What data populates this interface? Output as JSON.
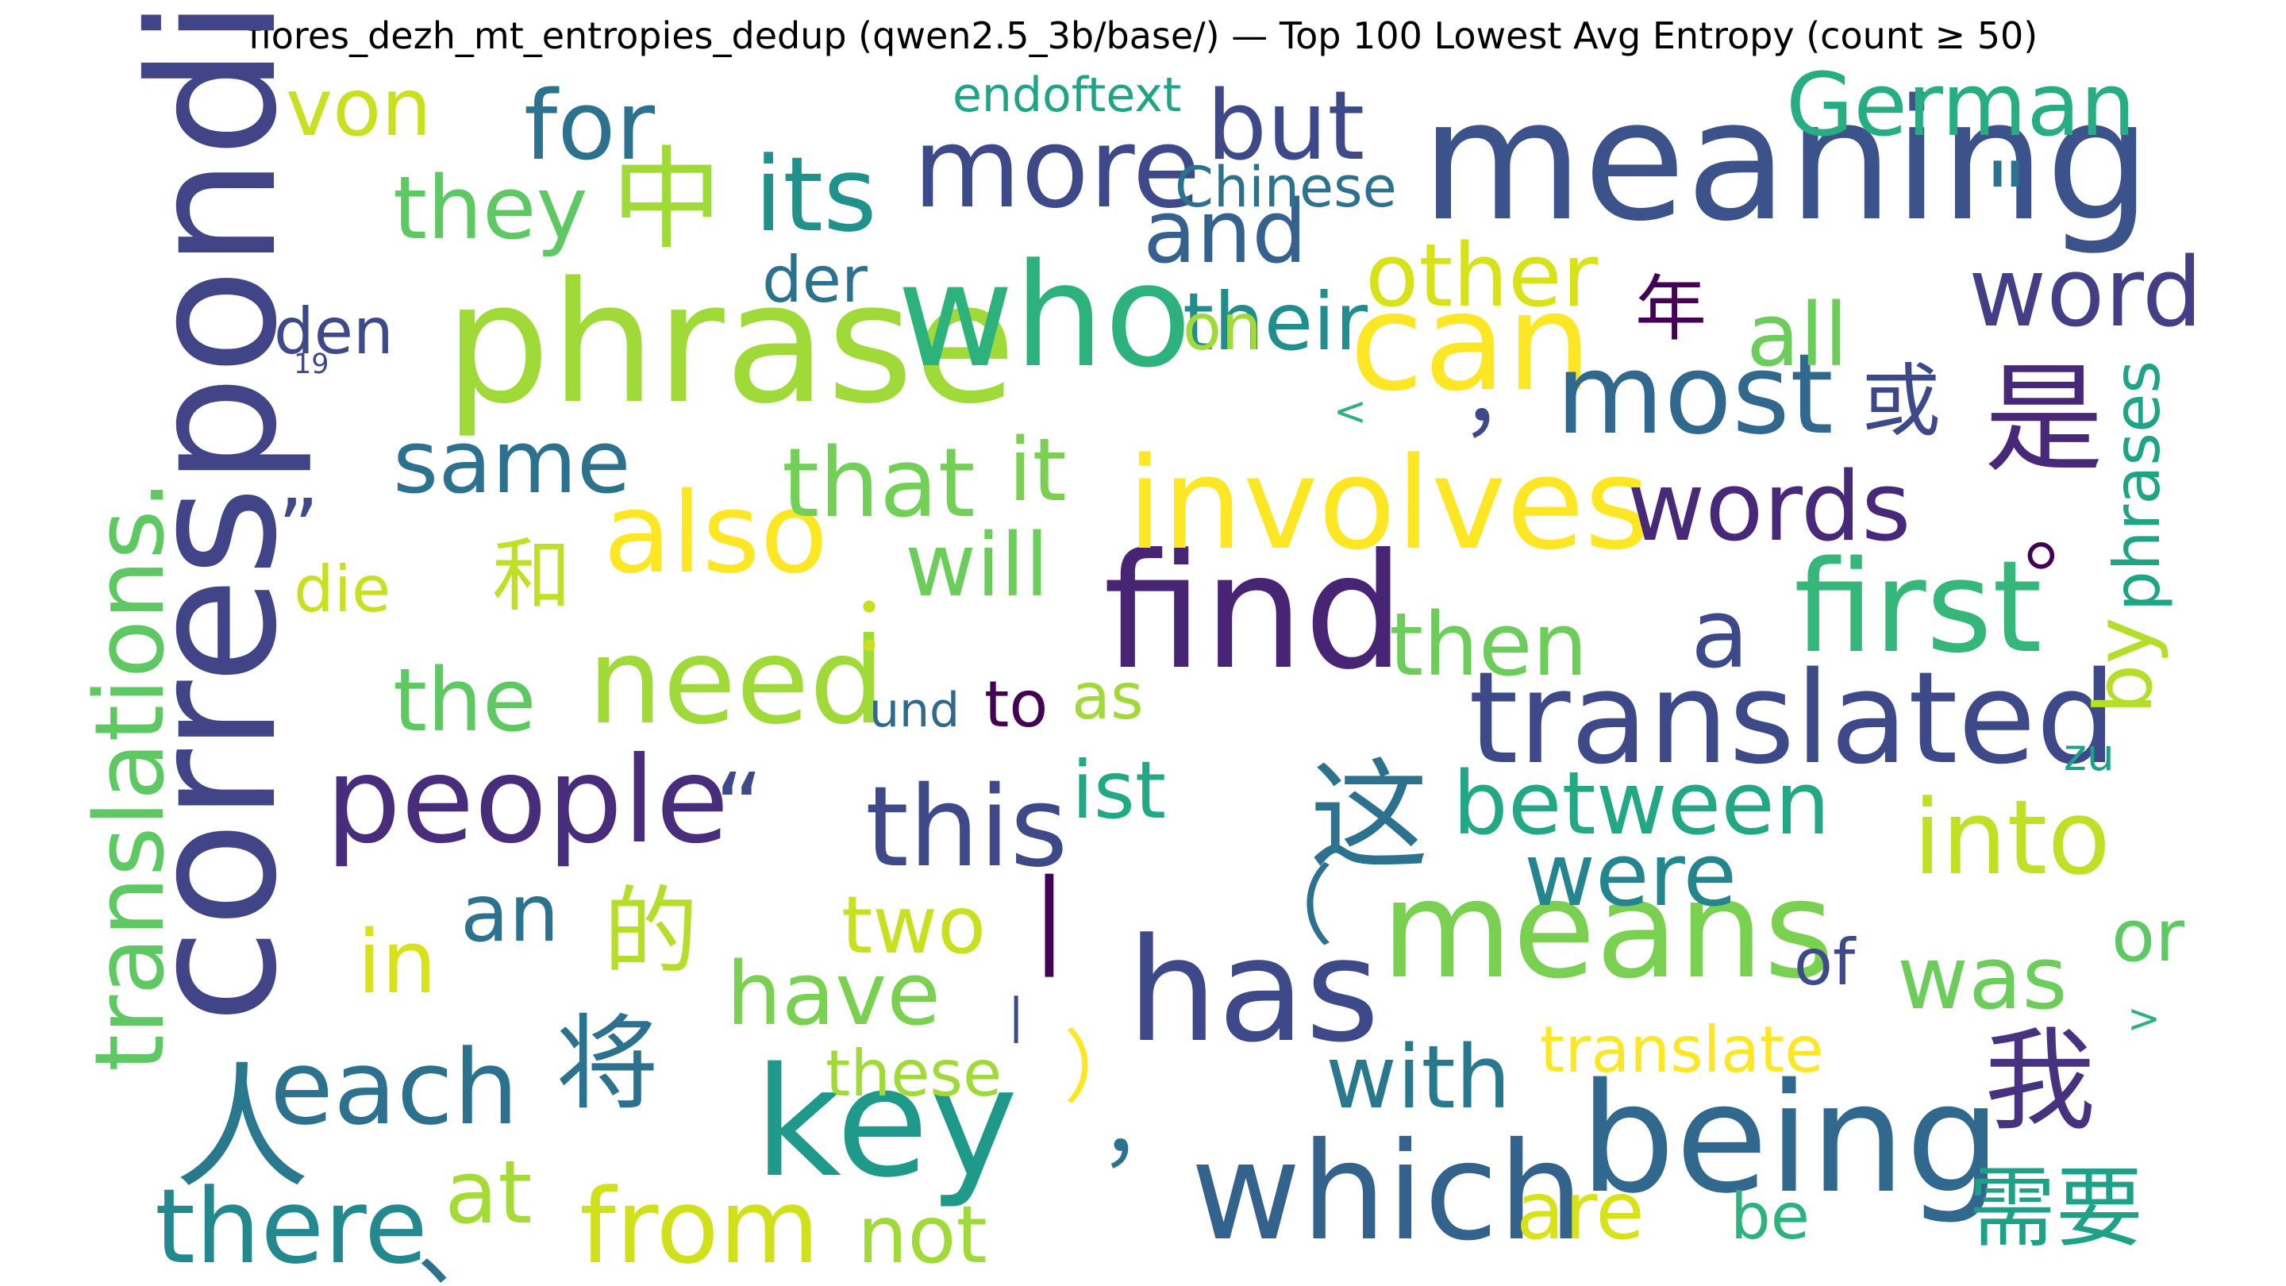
{
  "title": "flores_dezh_mt_entropies_dedup (qwen2.5_3b/base/) — Top 100 Lowest Avg Entropy (count ≥ 50)",
  "chart_data": {
    "type": "wordcloud",
    "title": "flores_dezh_mt_entropies_dedup (qwen2.5_3b/base/) — Top 100 Lowest Avg Entropy (count ≥ 50)",
    "colormap": "viridis",
    "words": [
      {
        "text": "corresponding",
        "weight": 1.0,
        "color": "#414487",
        "rotate": true
      },
      {
        "text": "meaning",
        "weight": 0.95,
        "color": "#3b528b"
      },
      {
        "text": "phrase",
        "weight": 0.95,
        "color": "#a0da39"
      },
      {
        "text": "find",
        "weight": 0.92,
        "color": "#482475"
      },
      {
        "text": "key",
        "weight": 0.9,
        "color": "#1f9a8a"
      },
      {
        "text": "being",
        "weight": 0.9,
        "color": "#31688e"
      },
      {
        "text": "has",
        "weight": 0.88,
        "color": "#3e4989"
      },
      {
        "text": "who",
        "weight": 0.88,
        "color": "#2db27d"
      },
      {
        "text": "which",
        "weight": 0.86,
        "color": "#33638d"
      },
      {
        "text": "means",
        "weight": 0.84,
        "color": "#7ad151"
      },
      {
        "text": "can",
        "weight": 0.84,
        "color": "#fde725"
      },
      {
        "text": "translated",
        "weight": 0.8,
        "color": "#3e4989"
      },
      {
        "text": "first",
        "weight": 0.8,
        "color": "#35b779"
      },
      {
        "text": "involves",
        "weight": 0.8,
        "color": "#fde725"
      },
      {
        "text": "need",
        "weight": 0.78,
        "color": "#a0da39"
      },
      {
        "text": "people",
        "weight": 0.78,
        "color": "#472d7b"
      },
      {
        "text": "translations.",
        "weight": 0.76,
        "color": "#5ec962",
        "rotate": true
      },
      {
        "text": "这",
        "weight": 0.76,
        "color": "#2c728e"
      },
      {
        "text": "人",
        "weight": 0.74,
        "color": "#2a788e"
      },
      {
        "text": "是",
        "weight": 0.74,
        "color": "#482878"
      },
      {
        "text": "我",
        "weight": 0.72,
        "color": "#46327e"
      },
      {
        "text": "most",
        "weight": 0.72,
        "color": "#31688e"
      },
      {
        "text": "more",
        "weight": 0.72,
        "color": "#3e4989"
      },
      {
        "text": "also",
        "weight": 0.72,
        "color": "#fde725"
      },
      {
        "text": "this",
        "weight": 0.7,
        "color": "#3e4989"
      },
      {
        "text": "中",
        "weight": 0.7,
        "color": "#a0da39"
      },
      {
        "text": "its",
        "weight": 0.68,
        "color": "#21918c"
      },
      {
        "text": "into",
        "weight": 0.68,
        "color": "#c0df25"
      },
      {
        "text": "from",
        "weight": 0.68,
        "color": "#d0e11c"
      },
      {
        "text": "there",
        "weight": 0.68,
        "color": "#23898e"
      },
      {
        "text": "each",
        "weight": 0.68,
        "color": "#2c728e"
      },
      {
        "text": "将",
        "weight": 0.66,
        "color": "#2c728e"
      },
      {
        "text": "的",
        "weight": 0.66,
        "color": "#b5de2b"
      },
      {
        "text": "word",
        "weight": 0.66,
        "color": "#433e85"
      },
      {
        "text": "words",
        "weight": 0.66,
        "color": "#482878"
      },
      {
        "text": "German",
        "weight": 0.64,
        "color": "#26ad81"
      },
      {
        "text": "they",
        "weight": 0.64,
        "color": "#5ec962"
      },
      {
        "text": "same",
        "weight": 0.64,
        "color": "#2c728e"
      },
      {
        "text": "that",
        "weight": 0.64,
        "color": "#73d056"
      },
      {
        "text": "the",
        "weight": 0.62,
        "color": "#5ec962"
      },
      {
        "text": "have",
        "weight": 0.62,
        "color": "#7ad151"
      },
      {
        "text": "were",
        "weight": 0.62,
        "color": "#25858e"
      },
      {
        "text": "between",
        "weight": 0.62,
        "color": "#22a884"
      },
      {
        "text": "需要",
        "weight": 0.62,
        "color": "#1fa187"
      },
      {
        "text": "but",
        "weight": 0.6,
        "color": "#3e4989"
      },
      {
        "text": "for",
        "weight": 0.6,
        "color": "#2c728e"
      },
      {
        "text": "other",
        "weight": 0.6,
        "color": "#d8e219"
      },
      {
        "text": "then",
        "weight": 0.6,
        "color": "#6ccd5a"
      },
      {
        "text": "will",
        "weight": 0.6,
        "color": "#6ccd5a"
      },
      {
        "text": "was",
        "weight": 0.6,
        "color": "#6ccd5a"
      },
      {
        "text": "with",
        "weight": 0.6,
        "color": "#29798e"
      },
      {
        "text": "and",
        "weight": 0.58,
        "color": "#34618d"
      },
      {
        "text": "all",
        "weight": 0.58,
        "color": "#6ccd5a"
      },
      {
        "text": "their",
        "weight": 0.58,
        "color": "#228d8d"
      },
      {
        "text": "in",
        "weight": 0.58,
        "color": "#d8e219"
      },
      {
        "text": "it",
        "weight": 0.58,
        "color": "#7ad151"
      },
      {
        "text": "a",
        "weight": 0.58,
        "color": "#3e4989"
      },
      {
        "text": "和",
        "weight": 0.56,
        "color": "#c2df23"
      },
      {
        "text": "或",
        "weight": 0.56,
        "color": "#3e4989"
      },
      {
        "text": "by",
        "weight": 0.56,
        "color": "#b5de2b",
        "rotate": true
      },
      {
        "text": "phrases",
        "weight": 0.5,
        "color": "#20a486",
        "rotate": true
      },
      {
        "text": "von",
        "weight": 0.54,
        "color": "#c8e020"
      },
      {
        "text": "an",
        "weight": 0.54,
        "color": "#2c728e"
      },
      {
        "text": "two",
        "weight": 0.54,
        "color": "#c8e020"
      },
      {
        "text": "ist",
        "weight": 0.54,
        "color": "#22a884"
      },
      {
        "text": "at",
        "weight": 0.54,
        "color": "#a5db36"
      },
      {
        "text": "are",
        "weight": 0.54,
        "color": "#d8e219"
      },
      {
        "text": "not",
        "weight": 0.54,
        "color": "#a0da39"
      },
      {
        "text": "translate",
        "weight": 0.52,
        "color": "#fde725"
      },
      {
        "text": "these",
        "weight": 0.52,
        "color": "#a0da39"
      },
      {
        "text": "or",
        "weight": 0.52,
        "color": "#5ec962"
      },
      {
        "text": "der",
        "weight": 0.5,
        "color": "#2c728e"
      },
      {
        "text": "on",
        "weight": 0.5,
        "color": "#a0da39"
      },
      {
        "text": "den",
        "weight": 0.48,
        "color": "#3e4989"
      },
      {
        "text": "die",
        "weight": 0.48,
        "color": "#c8e020"
      },
      {
        "text": "as",
        "weight": 0.48,
        "color": "#a0da39"
      },
      {
        "text": "to",
        "weight": 0.48,
        "color": "#440154"
      },
      {
        "text": "of",
        "weight": 0.46,
        "color": "#3e4989"
      },
      {
        "text": "年",
        "weight": 0.46,
        "color": "#440154"
      },
      {
        "text": "be",
        "weight": 0.44,
        "color": "#2db27d"
      },
      {
        "text": "Chinese",
        "weight": 0.4,
        "color": "#2c728e"
      },
      {
        "text": "und",
        "weight": 0.38,
        "color": "#31688e"
      },
      {
        "text": "endoftext",
        "weight": 0.32,
        "color": "#20a486"
      },
      {
        "text": "zu",
        "weight": 0.32,
        "color": "#1fa187"
      },
      {
        "text": "19",
        "weight": 0.16,
        "color": "#3e4989"
      },
      {
        "text": "\"",
        "weight": 0.6,
        "color": "#2c728e"
      },
      {
        "text": "“",
        "weight": 0.62,
        "color": "#3e4989"
      },
      {
        "text": "”",
        "weight": 0.56,
        "color": "#3e4989"
      },
      {
        "text": "，",
        "weight": 0.56,
        "color": "#3e4989"
      },
      {
        "text": "，",
        "weight": 0.56,
        "color": "#2c728e"
      },
      {
        "text": "。",
        "weight": 0.56,
        "color": "#440154"
      },
      {
        "text": "、",
        "weight": 0.56,
        "color": "#2c728e"
      },
      {
        "text": "（",
        "weight": 0.56,
        "color": "#2c728e"
      },
      {
        "text": "）",
        "weight": 0.56,
        "color": "#fde725"
      },
      {
        "text": "：",
        "weight": 0.56,
        "color": "#c8e020"
      },
      {
        "text": "|",
        "weight": 0.64,
        "color": "#440154"
      },
      {
        "text": "|",
        "weight": 0.36,
        "color": "#3e4989"
      },
      {
        "text": "<",
        "weight": 0.28,
        "color": "#2db27d"
      },
      {
        "text": ">",
        "weight": 0.28,
        "color": "#2db27d"
      }
    ]
  }
}
